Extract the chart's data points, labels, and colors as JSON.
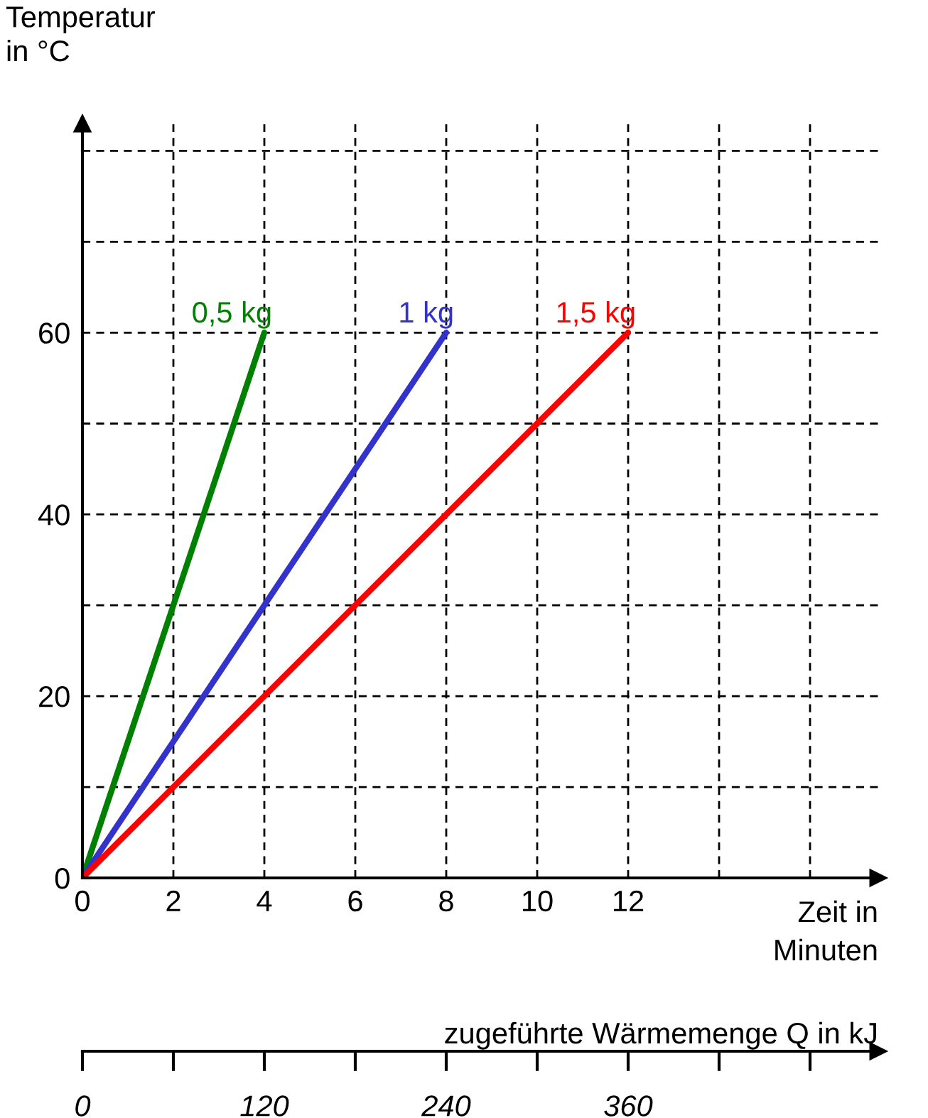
{
  "chart_data": {
    "type": "line",
    "xlabel": "Zeit in\nMinuten",
    "ylabel": "Temperatur\nin °C",
    "x2label": "zugeführte Wärmemenge Q in kJ",
    "series": [
      {
        "name": "0,5 kg",
        "color": "#008000",
        "x": [
          0,
          4
        ],
        "values": [
          0,
          60
        ]
      },
      {
        "name": "1 kg",
        "color": "#3333cc",
        "x": [
          0,
          8
        ],
        "values": [
          0,
          60
        ]
      },
      {
        "name": "1,5 kg",
        "color": "#ff0000",
        "x": [
          0,
          12
        ],
        "values": [
          0,
          60
        ]
      }
    ],
    "xlim": [
      0,
      17.5
    ],
    "ylim": [
      0,
      83
    ],
    "xticks": [
      0,
      2,
      4,
      6,
      8,
      10,
      12,
      {
        "value": 14,
        "label": null
      },
      {
        "value": 16,
        "label": null
      }
    ],
    "yticks": [
      0,
      {
        "value": 10,
        "label": null
      },
      20,
      {
        "value": 30,
        "label": null
      },
      40,
      {
        "value": 50,
        "label": null
      },
      60,
      {
        "value": 70,
        "label": null
      },
      {
        "value": 80,
        "label": null
      }
    ],
    "x2lim": [
      0,
      525
    ],
    "x2ticks": [
      0,
      {
        "value": 60,
        "label": null
      },
      120,
      {
        "value": 180,
        "label": null
      },
      240,
      {
        "value": 300,
        "label": null
      },
      360,
      {
        "value": 420,
        "label": null
      },
      {
        "value": 480,
        "label": null
      }
    ],
    "grid": true,
    "line_style": "solid"
  }
}
